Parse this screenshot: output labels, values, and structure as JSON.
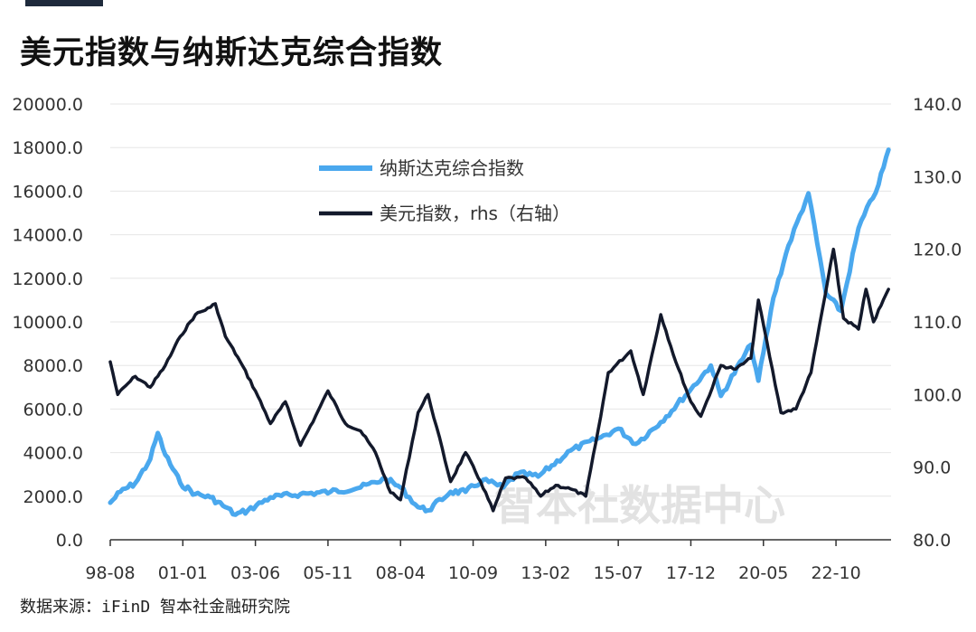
{
  "title": "美元指数与纳斯达克综合指数",
  "source": "数据来源：iFinD 智本社金融研究院",
  "watermark": "智本社数据中心",
  "chart_data": {
    "type": "line",
    "x_ticks": [
      "98-08",
      "01-01",
      "03-06",
      "05-11",
      "08-04",
      "10-09",
      "13-02",
      "15-07",
      "17-12",
      "20-05",
      "22-10"
    ],
    "y_left": {
      "ticks": [
        "0.0",
        "2000.0",
        "4000.0",
        "6000.0",
        "8000.0",
        "10000.0",
        "12000.0",
        "14000.0",
        "16000.0",
        "18000.0",
        "20000.0"
      ],
      "range": [
        0,
        20000
      ]
    },
    "y_right": {
      "ticks": [
        "80.0",
        "90.0",
        "100.0",
        "110.0",
        "120.0",
        "130.0",
        "140.0"
      ],
      "range": [
        80,
        140
      ],
      "label": "rhs"
    },
    "grid": "horizontal",
    "legend": "top-center",
    "series": [
      {
        "name": "纳斯达克综合指数",
        "axis": "left",
        "color": "#4aa8ee",
        "points": [
          [
            "1998-08",
            1700
          ],
          [
            "1998-12",
            2200
          ],
          [
            "1999-06",
            2600
          ],
          [
            "1999-12",
            3700
          ],
          [
            "2000-03",
            4900
          ],
          [
            "2000-06",
            3900
          ],
          [
            "2000-12",
            2600
          ],
          [
            "2001-06",
            2100
          ],
          [
            "2001-12",
            1950
          ],
          [
            "2002-06",
            1500
          ],
          [
            "2002-10",
            1150
          ],
          [
            "2003-03",
            1350
          ],
          [
            "2003-12",
            1950
          ],
          [
            "2004-12",
            2100
          ],
          [
            "2005-12",
            2200
          ],
          [
            "2006-12",
            2400
          ],
          [
            "2007-10",
            2800
          ],
          [
            "2008-04",
            2400
          ],
          [
            "2008-11",
            1500
          ],
          [
            "2009-03",
            1350
          ],
          [
            "2009-12",
            2200
          ],
          [
            "2010-06",
            2200
          ],
          [
            "2011-01",
            2750
          ],
          [
            "2011-09",
            2400
          ],
          [
            "2012-03",
            3050
          ],
          [
            "2012-11",
            2900
          ],
          [
            "2013-12",
            4100
          ],
          [
            "2014-12",
            4700
          ],
          [
            "2015-07",
            5100
          ],
          [
            "2016-02",
            4400
          ],
          [
            "2016-12",
            5400
          ],
          [
            "2017-12",
            6900
          ],
          [
            "2018-08",
            8000
          ],
          [
            "2018-12",
            6600
          ],
          [
            "2019-12",
            8950
          ],
          [
            "2020-03",
            7300
          ],
          [
            "2020-09",
            11100
          ],
          [
            "2021-03",
            13500
          ],
          [
            "2021-11",
            15900
          ],
          [
            "2022-06",
            11300
          ],
          [
            "2022-12",
            10500
          ],
          [
            "2023-07",
            14300
          ],
          [
            "2024-03",
            16300
          ],
          [
            "2024-07",
            17900
          ]
        ]
      },
      {
        "name": "美元指数，rhs（右轴）",
        "axis": "right",
        "color": "#13192b",
        "points": [
          [
            "1998-08",
            104.5
          ],
          [
            "1998-11",
            100
          ],
          [
            "1999-03",
            101.5
          ],
          [
            "1999-06",
            102.5
          ],
          [
            "1999-12",
            101
          ],
          [
            "2000-06",
            104
          ],
          [
            "2000-12",
            108
          ],
          [
            "2001-06",
            111
          ],
          [
            "2001-12",
            112
          ],
          [
            "2002-02",
            112.5
          ],
          [
            "2002-06",
            108
          ],
          [
            "2002-12",
            104.5
          ],
          [
            "2003-06",
            100.5
          ],
          [
            "2003-12",
            96
          ],
          [
            "2004-06",
            99
          ],
          [
            "2004-12",
            93
          ],
          [
            "2005-06",
            97
          ],
          [
            "2005-11",
            100.5
          ],
          [
            "2006-06",
            96
          ],
          [
            "2006-12",
            95
          ],
          [
            "2007-06",
            92
          ],
          [
            "2007-12",
            86.5
          ],
          [
            "2008-04",
            85.5
          ],
          [
            "2008-11",
            97.5
          ],
          [
            "2009-03",
            100
          ],
          [
            "2009-12",
            88
          ],
          [
            "2010-06",
            92
          ],
          [
            "2010-12",
            88
          ],
          [
            "2011-05",
            84
          ],
          [
            "2011-10",
            88.5
          ],
          [
            "2012-06",
            88.5
          ],
          [
            "2012-12",
            86
          ],
          [
            "2013-06",
            87.5
          ],
          [
            "2013-12",
            87
          ],
          [
            "2014-06",
            86
          ],
          [
            "2014-12",
            97
          ],
          [
            "2015-03",
            103
          ],
          [
            "2015-12",
            106
          ],
          [
            "2016-05",
            100
          ],
          [
            "2016-12",
            111
          ],
          [
            "2017-06",
            104.5
          ],
          [
            "2017-12",
            99
          ],
          [
            "2018-04",
            97
          ],
          [
            "2018-12",
            104
          ],
          [
            "2019-06",
            103.5
          ],
          [
            "2019-12",
            105
          ],
          [
            "2020-03",
            113
          ],
          [
            "2020-12",
            97.5
          ],
          [
            "2021-06",
            98
          ],
          [
            "2021-12",
            103
          ],
          [
            "2022-09",
            120
          ],
          [
            "2023-01",
            110.5
          ],
          [
            "2023-07",
            109
          ],
          [
            "2023-10",
            114.5
          ],
          [
            "2024-01",
            110
          ],
          [
            "2024-07",
            114.5
          ]
        ]
      }
    ]
  }
}
